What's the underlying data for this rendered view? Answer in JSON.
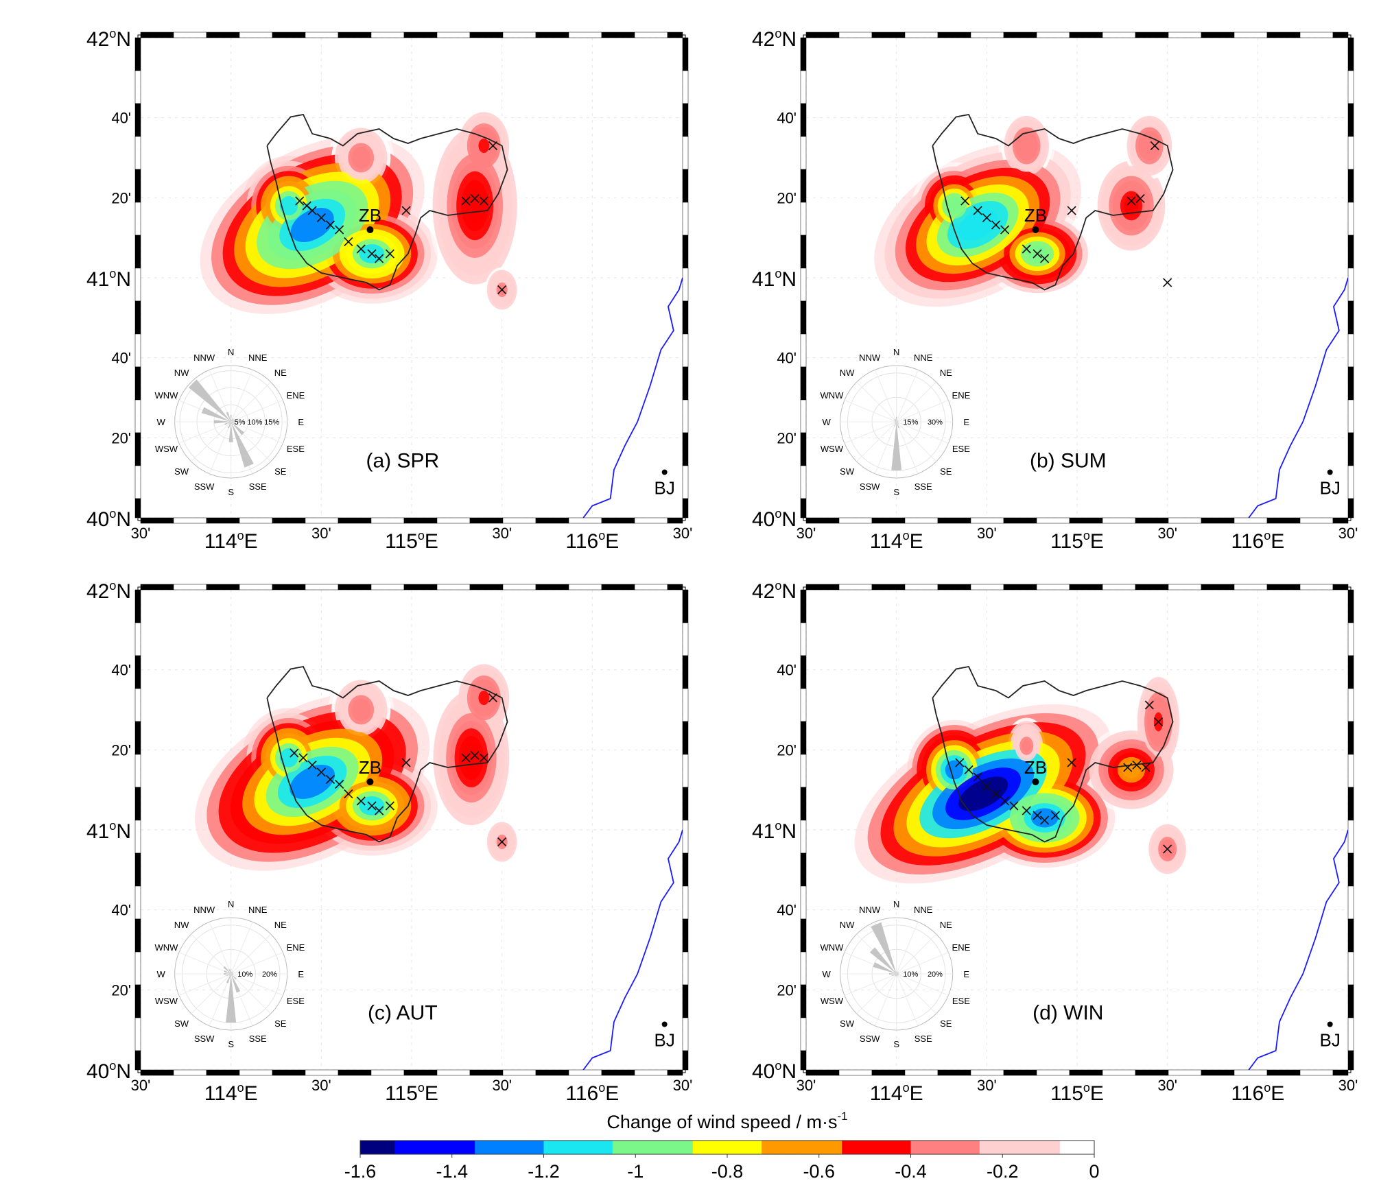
{
  "colorbar": {
    "title": "Change of wind speed / m·s",
    "title_exp": "-1",
    "ticks": [
      "-1.6",
      "-1.4",
      "-1.2",
      "-1",
      "-0.8",
      "-0.6",
      "-0.4",
      "-0.2",
      "0"
    ],
    "range": [
      -1.6,
      0
    ],
    "colors": [
      "#00007f",
      "#0000ff",
      "#0080ff",
      "#19e6f0",
      "#7bf78a",
      "#ffff00",
      "#ff9900",
      "#ff0000",
      "#ff8080",
      "#ffd0d0",
      "#ffffff"
    ]
  },
  "axes": {
    "lat": [
      {
        "deg": "42",
        "sup": "o",
        "hemi": "N"
      },
      {
        "label": "40'"
      },
      {
        "label": "20'"
      },
      {
        "deg": "41",
        "sup": "o",
        "hemi": "N"
      },
      {
        "label": "40'"
      },
      {
        "label": "20'"
      },
      {
        "deg": "40",
        "sup": "o",
        "hemi": "N"
      }
    ],
    "lon": [
      {
        "label": "30'"
      },
      {
        "deg": "114",
        "sup": "o",
        "hemi": "E"
      },
      {
        "label": "30'"
      },
      {
        "deg": "115",
        "sup": "o",
        "hemi": "E"
      },
      {
        "label": "30'"
      },
      {
        "deg": "116",
        "sup": "o",
        "hemi": "E"
      },
      {
        "label": "30'"
      }
    ]
  },
  "cities": {
    "zb": "ZB",
    "bj": "BJ"
  },
  "rose_directions": [
    "N",
    "NNE",
    "NE",
    "ENE",
    "E",
    "ESE",
    "SE",
    "SSE",
    "S",
    "SSW",
    "SW",
    "WSW",
    "W",
    "WNW",
    "NW",
    "NNW"
  ],
  "panels": [
    {
      "id": "spr",
      "label": "(a) SPR",
      "rose": {
        "rings": [
          "5%",
          "10%",
          "15%"
        ],
        "ring_max": 15,
        "freq": [
          2,
          1,
          1,
          1,
          1,
          2,
          5,
          14,
          6,
          2,
          1,
          2,
          5,
          9,
          16,
          3
        ]
      },
      "blobs": [
        {
          "lon": 114.45,
          "lat": 41.22,
          "rx": 0.26,
          "ry": 0.12,
          "rot": 30,
          "level": 1.35
        },
        {
          "lon": 114.78,
          "lat": 41.1,
          "rx": 0.14,
          "ry": 0.08,
          "rot": 0,
          "level": 1.1
        },
        {
          "lon": 114.32,
          "lat": 41.3,
          "rx": 0.1,
          "ry": 0.08,
          "rot": 0,
          "level": 1.05
        },
        {
          "lon": 115.35,
          "lat": 41.3,
          "rx": 0.1,
          "ry": 0.14,
          "rot": 0,
          "level": 0.55
        },
        {
          "lon": 115.4,
          "lat": 41.55,
          "rx": 0.06,
          "ry": 0.06,
          "rot": 0,
          "level": 0.45
        },
        {
          "lon": 115.5,
          "lat": 40.95,
          "rx": 0.04,
          "ry": 0.04,
          "rot": 0,
          "level": 0.3
        },
        {
          "lon": 114.72,
          "lat": 41.5,
          "rx": 0.07,
          "ry": 0.06,
          "rot": 0,
          "level": 0.35
        }
      ],
      "crosses": [
        [
          114.38,
          41.32
        ],
        [
          114.42,
          41.3
        ],
        [
          114.45,
          41.28
        ],
        [
          114.5,
          41.25
        ],
        [
          114.55,
          41.22
        ],
        [
          114.6,
          41.2
        ],
        [
          114.65,
          41.15
        ],
        [
          114.72,
          41.12
        ],
        [
          114.78,
          41.1
        ],
        [
          114.82,
          41.08
        ],
        [
          114.88,
          41.1
        ],
        [
          115.3,
          41.32
        ],
        [
          115.35,
          41.33
        ],
        [
          115.4,
          41.32
        ],
        [
          115.5,
          40.95
        ],
        [
          115.45,
          41.55
        ],
        [
          114.97,
          41.28
        ]
      ]
    },
    {
      "id": "sum",
      "label": "(b) SUM",
      "rose": {
        "rings": [
          "15%",
          "30%"
        ],
        "ring_max": 30,
        "freq": [
          3,
          1,
          1,
          1,
          1,
          1,
          2,
          4,
          30,
          3,
          1,
          1,
          1,
          1,
          2,
          2
        ]
      },
      "blobs": [
        {
          "lon": 114.45,
          "lat": 41.22,
          "rx": 0.24,
          "ry": 0.11,
          "rot": 30,
          "level": 1.2
        },
        {
          "lon": 114.78,
          "lat": 41.1,
          "rx": 0.12,
          "ry": 0.07,
          "rot": 0,
          "level": 1.0
        },
        {
          "lon": 114.32,
          "lat": 41.3,
          "rx": 0.09,
          "ry": 0.07,
          "rot": 0,
          "level": 1.0
        },
        {
          "lon": 115.3,
          "lat": 41.3,
          "rx": 0.08,
          "ry": 0.08,
          "rot": 0,
          "level": 0.5
        },
        {
          "lon": 115.4,
          "lat": 41.55,
          "rx": 0.06,
          "ry": 0.06,
          "rot": 0,
          "level": 0.4
        },
        {
          "lon": 114.72,
          "lat": 41.55,
          "rx": 0.06,
          "ry": 0.06,
          "rot": 0,
          "level": 0.4
        }
      ],
      "crosses": [
        [
          114.38,
          41.32
        ],
        [
          114.45,
          41.28
        ],
        [
          114.5,
          41.25
        ],
        [
          114.55,
          41.22
        ],
        [
          114.6,
          41.2
        ],
        [
          114.72,
          41.12
        ],
        [
          114.78,
          41.1
        ],
        [
          114.82,
          41.08
        ],
        [
          115.3,
          41.32
        ],
        [
          115.35,
          41.33
        ],
        [
          115.43,
          41.55
        ],
        [
          115.5,
          40.98
        ],
        [
          114.97,
          41.28
        ]
      ]
    },
    {
      "id": "aut",
      "label": "(c) AUT",
      "rose": {
        "rings": [
          "10%",
          "20%"
        ],
        "ring_max": 20,
        "freq": [
          2,
          1,
          1,
          1,
          1,
          1,
          3,
          8,
          20,
          4,
          1,
          2,
          3,
          3,
          4,
          2
        ]
      },
      "blobs": [
        {
          "lon": 114.45,
          "lat": 41.2,
          "rx": 0.27,
          "ry": 0.12,
          "rot": 28,
          "level": 1.3
        },
        {
          "lon": 114.78,
          "lat": 41.1,
          "rx": 0.14,
          "ry": 0.08,
          "rot": 0,
          "level": 1.05
        },
        {
          "lon": 114.32,
          "lat": 41.3,
          "rx": 0.1,
          "ry": 0.08,
          "rot": 0,
          "level": 1.05
        },
        {
          "lon": 115.33,
          "lat": 41.3,
          "rx": 0.09,
          "ry": 0.12,
          "rot": 0,
          "level": 0.55
        },
        {
          "lon": 115.4,
          "lat": 41.55,
          "rx": 0.06,
          "ry": 0.06,
          "rot": 0,
          "level": 0.45
        },
        {
          "lon": 115.5,
          "lat": 40.95,
          "rx": 0.04,
          "ry": 0.04,
          "rot": 0,
          "level": 0.3
        },
        {
          "lon": 114.72,
          "lat": 41.5,
          "rx": 0.07,
          "ry": 0.06,
          "rot": 0,
          "level": 0.35
        }
      ],
      "crosses": [
        [
          114.35,
          41.32
        ],
        [
          114.4,
          41.3
        ],
        [
          114.45,
          41.27
        ],
        [
          114.5,
          41.24
        ],
        [
          114.55,
          41.21
        ],
        [
          114.6,
          41.19
        ],
        [
          114.65,
          41.15
        ],
        [
          114.72,
          41.12
        ],
        [
          114.78,
          41.1
        ],
        [
          114.82,
          41.08
        ],
        [
          114.88,
          41.1
        ],
        [
          115.3,
          41.3
        ],
        [
          115.35,
          41.31
        ],
        [
          115.4,
          41.3
        ],
        [
          115.5,
          40.95
        ],
        [
          115.45,
          41.55
        ],
        [
          114.97,
          41.28
        ]
      ]
    },
    {
      "id": "win",
      "label": "(d) WIN",
      "rose": {
        "rings": [
          "10%",
          "20%"
        ],
        "ring_max": 20,
        "freq": [
          1,
          1,
          1,
          1,
          1,
          1,
          1,
          1,
          1,
          1,
          1,
          2,
          3,
          10,
          14,
          22
        ]
      },
      "blobs": [
        {
          "lon": 114.48,
          "lat": 41.15,
          "rx": 0.3,
          "ry": 0.11,
          "rot": 28,
          "level": 1.6
        },
        {
          "lon": 114.82,
          "lat": 41.05,
          "rx": 0.15,
          "ry": 0.08,
          "rot": 0,
          "level": 1.35
        },
        {
          "lon": 114.32,
          "lat": 41.25,
          "rx": 0.1,
          "ry": 0.08,
          "rot": 0,
          "level": 1.3
        },
        {
          "lon": 115.3,
          "lat": 41.25,
          "rx": 0.1,
          "ry": 0.07,
          "rot": 0,
          "level": 0.7
        },
        {
          "lon": 115.45,
          "lat": 41.45,
          "rx": 0.05,
          "ry": 0.08,
          "rot": 0,
          "level": 0.45
        },
        {
          "lon": 115.5,
          "lat": 40.92,
          "rx": 0.05,
          "ry": 0.05,
          "rot": 0,
          "level": 0.35
        },
        {
          "lon": 114.72,
          "lat": 41.35,
          "rx": 0.05,
          "ry": 0.05,
          "rot": 0,
          "level": 0.3
        }
      ],
      "crosses": [
        [
          114.35,
          41.28
        ],
        [
          114.4,
          41.25
        ],
        [
          114.45,
          41.22
        ],
        [
          114.5,
          41.18
        ],
        [
          114.55,
          41.15
        ],
        [
          114.6,
          41.12
        ],
        [
          114.65,
          41.1
        ],
        [
          114.72,
          41.08
        ],
        [
          114.78,
          41.06
        ],
        [
          114.82,
          41.04
        ],
        [
          114.88,
          41.06
        ],
        [
          115.28,
          41.26
        ],
        [
          115.33,
          41.27
        ],
        [
          115.38,
          41.26
        ],
        [
          115.5,
          40.92
        ],
        [
          115.4,
          41.52
        ],
        [
          115.45,
          41.45
        ],
        [
          114.97,
          41.28
        ]
      ]
    }
  ]
}
